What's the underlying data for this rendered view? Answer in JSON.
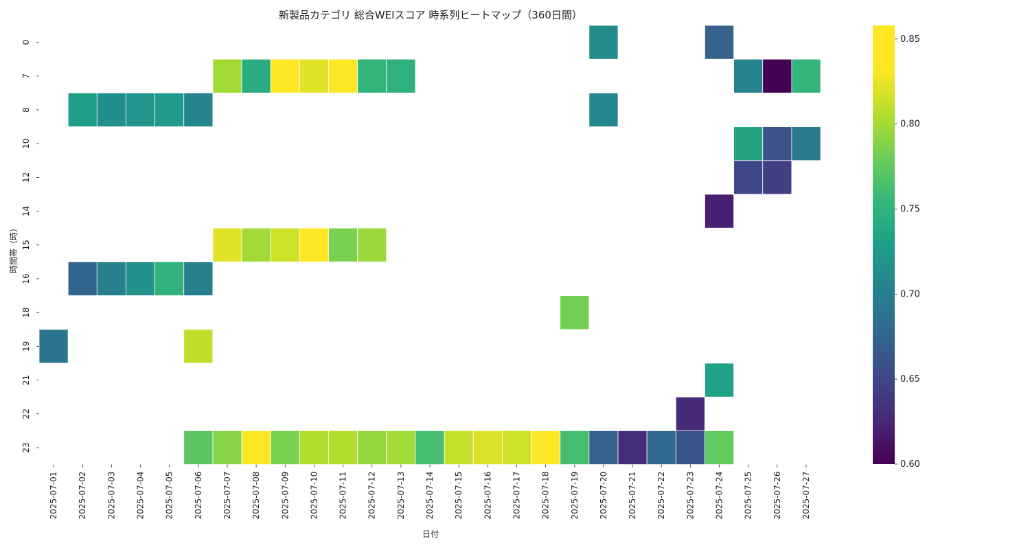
{
  "chart_data": {
    "type": "heatmap",
    "title": "新製品カテゴリ 総合WEIスコア 時系列ヒートマップ（360日間）",
    "xlabel": "日付",
    "ylabel": "時間帯（時）",
    "x": [
      "2025-07-01",
      "2025-07-02",
      "2025-07-03",
      "2025-07-04",
      "2025-07-05",
      "2025-07-06",
      "2025-07-07",
      "2025-07-08",
      "2025-07-09",
      "2025-07-10",
      "2025-07-11",
      "2025-07-12",
      "2025-07-13",
      "2025-07-14",
      "2025-07-15",
      "2025-07-16",
      "2025-07-17",
      "2025-07-18",
      "2025-07-19",
      "2025-07-20",
      "2025-07-21",
      "2025-07-22",
      "2025-07-23",
      "2025-07-24",
      "2025-07-25",
      "2025-07-26",
      "2025-07-27"
    ],
    "y": [
      "0",
      "7",
      "8",
      "10",
      "12",
      "14",
      "15",
      "16",
      "18",
      "19",
      "21",
      "22",
      "23"
    ],
    "colormap": "viridis",
    "colorbar": {
      "min": 0.6,
      "max": 0.858,
      "ticks": [
        "0.60",
        "0.65",
        "0.70",
        "0.75",
        "0.80",
        "0.85"
      ]
    },
    "cells": [
      {
        "date": "2025-07-20",
        "hour": "0",
        "value": 0.712
      },
      {
        "date": "2025-07-24",
        "hour": "0",
        "value": 0.672
      },
      {
        "date": "2025-07-07",
        "hour": "7",
        "value": 0.8
      },
      {
        "date": "2025-07-08",
        "hour": "7",
        "value": 0.742
      },
      {
        "date": "2025-07-09",
        "hour": "7",
        "value": 0.852
      },
      {
        "date": "2025-07-10",
        "hour": "7",
        "value": 0.822
      },
      {
        "date": "2025-07-11",
        "hour": "7",
        "value": 0.85
      },
      {
        "date": "2025-07-12",
        "hour": "7",
        "value": 0.752
      },
      {
        "date": "2025-07-13",
        "hour": "7",
        "value": 0.748
      },
      {
        "date": "2025-07-25",
        "hour": "7",
        "value": 0.705
      },
      {
        "date": "2025-07-26",
        "hour": "7",
        "value": 0.6
      },
      {
        "date": "2025-07-27",
        "hour": "7",
        "value": 0.752
      },
      {
        "date": "2025-07-02",
        "hour": "8",
        "value": 0.73
      },
      {
        "date": "2025-07-03",
        "hour": "8",
        "value": 0.715
      },
      {
        "date": "2025-07-04",
        "hour": "8",
        "value": 0.72
      },
      {
        "date": "2025-07-05",
        "hour": "8",
        "value": 0.725
      },
      {
        "date": "2025-07-06",
        "hour": "8",
        "value": 0.705
      },
      {
        "date": "2025-07-20",
        "hour": "8",
        "value": 0.708
      },
      {
        "date": "2025-07-25",
        "hour": "10",
        "value": 0.735
      },
      {
        "date": "2025-07-26",
        "hour": "10",
        "value": 0.66
      },
      {
        "date": "2025-07-27",
        "hour": "10",
        "value": 0.695
      },
      {
        "date": "2025-07-25",
        "hour": "12",
        "value": 0.65
      },
      {
        "date": "2025-07-26",
        "hour": "12",
        "value": 0.643
      },
      {
        "date": "2025-07-24",
        "hour": "14",
        "value": 0.62
      },
      {
        "date": "2025-07-07",
        "hour": "15",
        "value": 0.822
      },
      {
        "date": "2025-07-08",
        "hour": "15",
        "value": 0.8
      },
      {
        "date": "2025-07-09",
        "hour": "15",
        "value": 0.815
      },
      {
        "date": "2025-07-10",
        "hour": "15",
        "value": 0.855
      },
      {
        "date": "2025-07-11",
        "hour": "15",
        "value": 0.785
      },
      {
        "date": "2025-07-12",
        "hour": "15",
        "value": 0.797
      },
      {
        "date": "2025-07-02",
        "hour": "16",
        "value": 0.675
      },
      {
        "date": "2025-07-03",
        "hour": "16",
        "value": 0.7
      },
      {
        "date": "2025-07-04",
        "hour": "16",
        "value": 0.718
      },
      {
        "date": "2025-07-05",
        "hour": "16",
        "value": 0.75
      },
      {
        "date": "2025-07-06",
        "hour": "16",
        "value": 0.7
      },
      {
        "date": "2025-07-19",
        "hour": "18",
        "value": 0.782
      },
      {
        "date": "2025-07-01",
        "hour": "19",
        "value": 0.69
      },
      {
        "date": "2025-07-06",
        "hour": "19",
        "value": 0.81
      },
      {
        "date": "2025-07-24",
        "hour": "21",
        "value": 0.732
      },
      {
        "date": "2025-07-23",
        "hour": "22",
        "value": 0.628
      },
      {
        "date": "2025-07-06",
        "hour": "23",
        "value": 0.772
      },
      {
        "date": "2025-07-07",
        "hour": "23",
        "value": 0.79
      },
      {
        "date": "2025-07-08",
        "hour": "23",
        "value": 0.852
      },
      {
        "date": "2025-07-09",
        "hour": "23",
        "value": 0.785
      },
      {
        "date": "2025-07-10",
        "hour": "23",
        "value": 0.805
      },
      {
        "date": "2025-07-11",
        "hour": "23",
        "value": 0.805
      },
      {
        "date": "2025-07-12",
        "hour": "23",
        "value": 0.795
      },
      {
        "date": "2025-07-13",
        "hour": "23",
        "value": 0.8
      },
      {
        "date": "2025-07-14",
        "hour": "23",
        "value": 0.762
      },
      {
        "date": "2025-07-15",
        "hour": "23",
        "value": 0.812
      },
      {
        "date": "2025-07-16",
        "hour": "23",
        "value": 0.82
      },
      {
        "date": "2025-07-17",
        "hour": "23",
        "value": 0.815
      },
      {
        "date": "2025-07-18",
        "hour": "23",
        "value": 0.842
      },
      {
        "date": "2025-07-19",
        "hour": "23",
        "value": 0.762
      },
      {
        "date": "2025-07-20",
        "hour": "23",
        "value": 0.672
      },
      {
        "date": "2025-07-21",
        "hour": "23",
        "value": 0.63
      },
      {
        "date": "2025-07-22",
        "hour": "23",
        "value": 0.678
      },
      {
        "date": "2025-07-23",
        "hour": "23",
        "value": 0.66
      },
      {
        "date": "2025-07-24",
        "hour": "23",
        "value": 0.775
      }
    ]
  }
}
